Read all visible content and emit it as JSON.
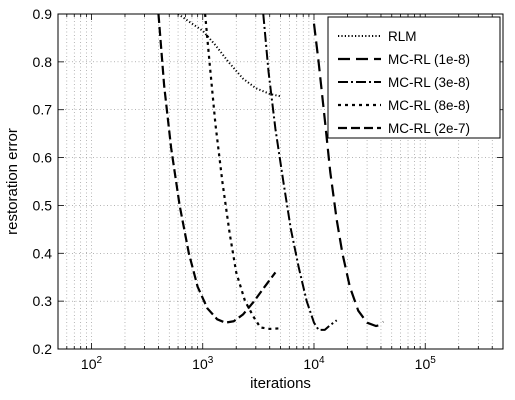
{
  "chart_data": {
    "type": "line",
    "title": "",
    "xlabel": "iterations",
    "ylabel": "restoration error",
    "x_scale": "log",
    "xlim": [
      50,
      500000
    ],
    "ylim": [
      0.2,
      0.9
    ],
    "grid": true,
    "legend_position": "top-right",
    "x_tick_labels": [
      {
        "value": 100,
        "base": "10",
        "exp": "2"
      },
      {
        "value": 1000,
        "base": "10",
        "exp": "3"
      },
      {
        "value": 10000,
        "base": "10",
        "exp": "4"
      },
      {
        "value": 100000,
        "base": "10",
        "exp": "5"
      }
    ],
    "y_ticks": [
      0.2,
      0.3,
      0.4,
      0.5,
      0.6,
      0.7,
      0.8,
      0.9
    ],
    "y_tick_labels": [
      "0.2",
      "0.3",
      "0.4",
      "0.5",
      "0.6",
      "0.7",
      "0.8",
      "0.9"
    ],
    "series": [
      {
        "name": "RLM",
        "dash": "dotted",
        "points": [
          [
            600,
            0.9
          ],
          [
            800,
            0.88
          ],
          [
            1000,
            0.865
          ],
          [
            1300,
            0.835
          ],
          [
            1700,
            0.8
          ],
          [
            2300,
            0.765
          ],
          [
            3000,
            0.745
          ],
          [
            4000,
            0.733
          ],
          [
            5000,
            0.728
          ]
        ]
      },
      {
        "name": "MC-RL (1e-8)",
        "dash": "dashed",
        "points": [
          [
            10000,
            0.88
          ],
          [
            11000,
            0.8
          ],
          [
            12500,
            0.68
          ],
          [
            14000,
            0.57
          ],
          [
            16000,
            0.47
          ],
          [
            18000,
            0.4
          ],
          [
            21000,
            0.33
          ],
          [
            25000,
            0.28
          ],
          [
            30000,
            0.255
          ],
          [
            36000,
            0.248
          ],
          [
            39000,
            0.25
          ],
          [
            42000,
            0.257
          ]
        ]
      },
      {
        "name": "MC-RL (3e-8)",
        "dash": "dashdot",
        "points": [
          [
            3500,
            0.9
          ],
          [
            3900,
            0.78
          ],
          [
            4500,
            0.66
          ],
          [
            5300,
            0.55
          ],
          [
            6200,
            0.45
          ],
          [
            7300,
            0.37
          ],
          [
            8600,
            0.3
          ],
          [
            10000,
            0.255
          ],
          [
            11000,
            0.24
          ],
          [
            12500,
            0.24
          ],
          [
            14000,
            0.25
          ],
          [
            16000,
            0.26
          ]
        ]
      },
      {
        "name": "MC-RL (8e-8)",
        "dash": "shortdash",
        "points": [
          [
            1050,
            0.9
          ],
          [
            1150,
            0.8
          ],
          [
            1300,
            0.67
          ],
          [
            1500,
            0.55
          ],
          [
            1750,
            0.44
          ],
          [
            2000,
            0.36
          ],
          [
            2400,
            0.3
          ],
          [
            2900,
            0.265
          ],
          [
            3300,
            0.245
          ],
          [
            4000,
            0.242
          ],
          [
            4800,
            0.243
          ]
        ]
      },
      {
        "name": "MC-RL (2e-7)",
        "dash": "longdash",
        "points": [
          [
            400,
            0.9
          ],
          [
            450,
            0.75
          ],
          [
            520,
            0.62
          ],
          [
            620,
            0.5
          ],
          [
            750,
            0.4
          ],
          [
            900,
            0.33
          ],
          [
            1100,
            0.285
          ],
          [
            1350,
            0.262
          ],
          [
            1600,
            0.255
          ],
          [
            1900,
            0.258
          ],
          [
            2300,
            0.272
          ],
          [
            2900,
            0.3
          ],
          [
            3600,
            0.33
          ],
          [
            4500,
            0.36
          ]
        ]
      }
    ]
  }
}
